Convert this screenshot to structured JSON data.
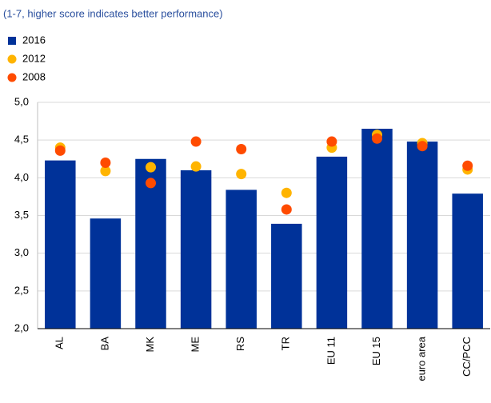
{
  "chart_data": {
    "type": "bar",
    "subtitle": "(1-7, higher score indicates better performance)",
    "categories": [
      "AL",
      "BA",
      "MK",
      "ME",
      "RS",
      "TR",
      "EU 11",
      "EU 15",
      "euro area",
      "CC/PCC"
    ],
    "series": [
      {
        "name": "2016",
        "color": "#003299",
        "style": "bar",
        "values": [
          4.23,
          3.46,
          4.25,
          4.1,
          3.84,
          3.39,
          4.28,
          4.65,
          4.48,
          3.79
        ]
      },
      {
        "name": "2012",
        "color": "#ffb400",
        "style": "dot",
        "values": [
          4.4,
          4.09,
          4.14,
          4.15,
          4.05,
          3.8,
          4.4,
          4.57,
          4.46,
          4.11
        ]
      },
      {
        "name": "2008",
        "color": "#ff4b00",
        "style": "dot",
        "values": [
          4.36,
          4.2,
          3.93,
          4.48,
          4.38,
          3.58,
          4.48,
          4.52,
          4.42,
          4.16
        ]
      }
    ],
    "ylim": [
      2,
      5
    ],
    "yticks": [
      {
        "value": 2,
        "label": "2,0"
      },
      {
        "value": 2.5,
        "label": "2,5"
      },
      {
        "value": 3,
        "label": "3,0"
      },
      {
        "value": 3.5,
        "label": "3,5"
      },
      {
        "value": 4,
        "label": "4,0"
      },
      {
        "value": 4.5,
        "label": "4,5"
      },
      {
        "value": 5,
        "label": "5,0"
      }
    ],
    "grid": true
  }
}
